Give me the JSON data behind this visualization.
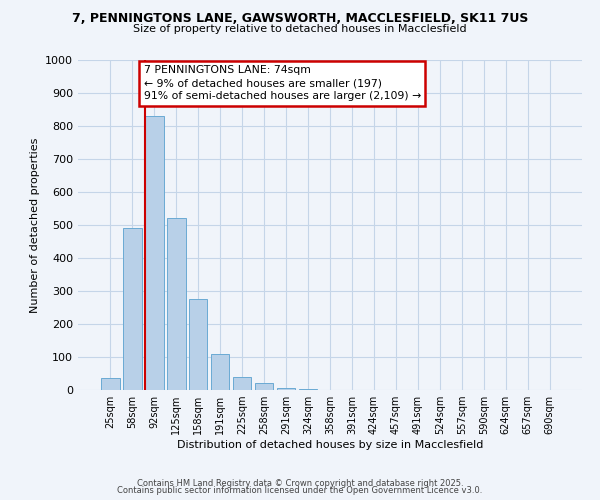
{
  "title_line1": "7, PENNINGTONS LANE, GAWSWORTH, MACCLESFIELD, SK11 7US",
  "title_line2": "Size of property relative to detached houses in Macclesfield",
  "xlabel": "Distribution of detached houses by size in Macclesfield",
  "ylabel": "Number of detached properties",
  "bar_labels": [
    "25sqm",
    "58sqm",
    "92sqm",
    "125sqm",
    "158sqm",
    "191sqm",
    "225sqm",
    "258sqm",
    "291sqm",
    "324sqm",
    "358sqm",
    "391sqm",
    "424sqm",
    "457sqm",
    "491sqm",
    "524sqm",
    "557sqm",
    "590sqm",
    "624sqm",
    "657sqm",
    "690sqm"
  ],
  "bar_values": [
    35,
    490,
    830,
    520,
    275,
    110,
    40,
    20,
    5,
    2,
    1,
    0,
    0,
    0,
    0,
    0,
    0,
    0,
    0,
    0,
    0
  ],
  "bar_color": "#b8d0e8",
  "bar_edgecolor": "#6aaad4",
  "annotation_title": "7 PENNINGTONS LANE: 74sqm",
  "annotation_line1": "← 9% of detached houses are smaller (197)",
  "annotation_line2": "91% of semi-detached houses are larger (2,109) →",
  "annotation_box_facecolor": "#ffffff",
  "annotation_box_edgecolor": "#cc0000",
  "redline_color": "#cc0000",
  "ylim": [
    0,
    1000
  ],
  "yticks": [
    0,
    100,
    200,
    300,
    400,
    500,
    600,
    700,
    800,
    900,
    1000
  ],
  "footnote1": "Contains HM Land Registry data © Crown copyright and database right 2025.",
  "footnote2": "Contains public sector information licensed under the Open Government Licence v3.0.",
  "bg_color": "#f0f4fa",
  "grid_color": "#c5d5e8"
}
